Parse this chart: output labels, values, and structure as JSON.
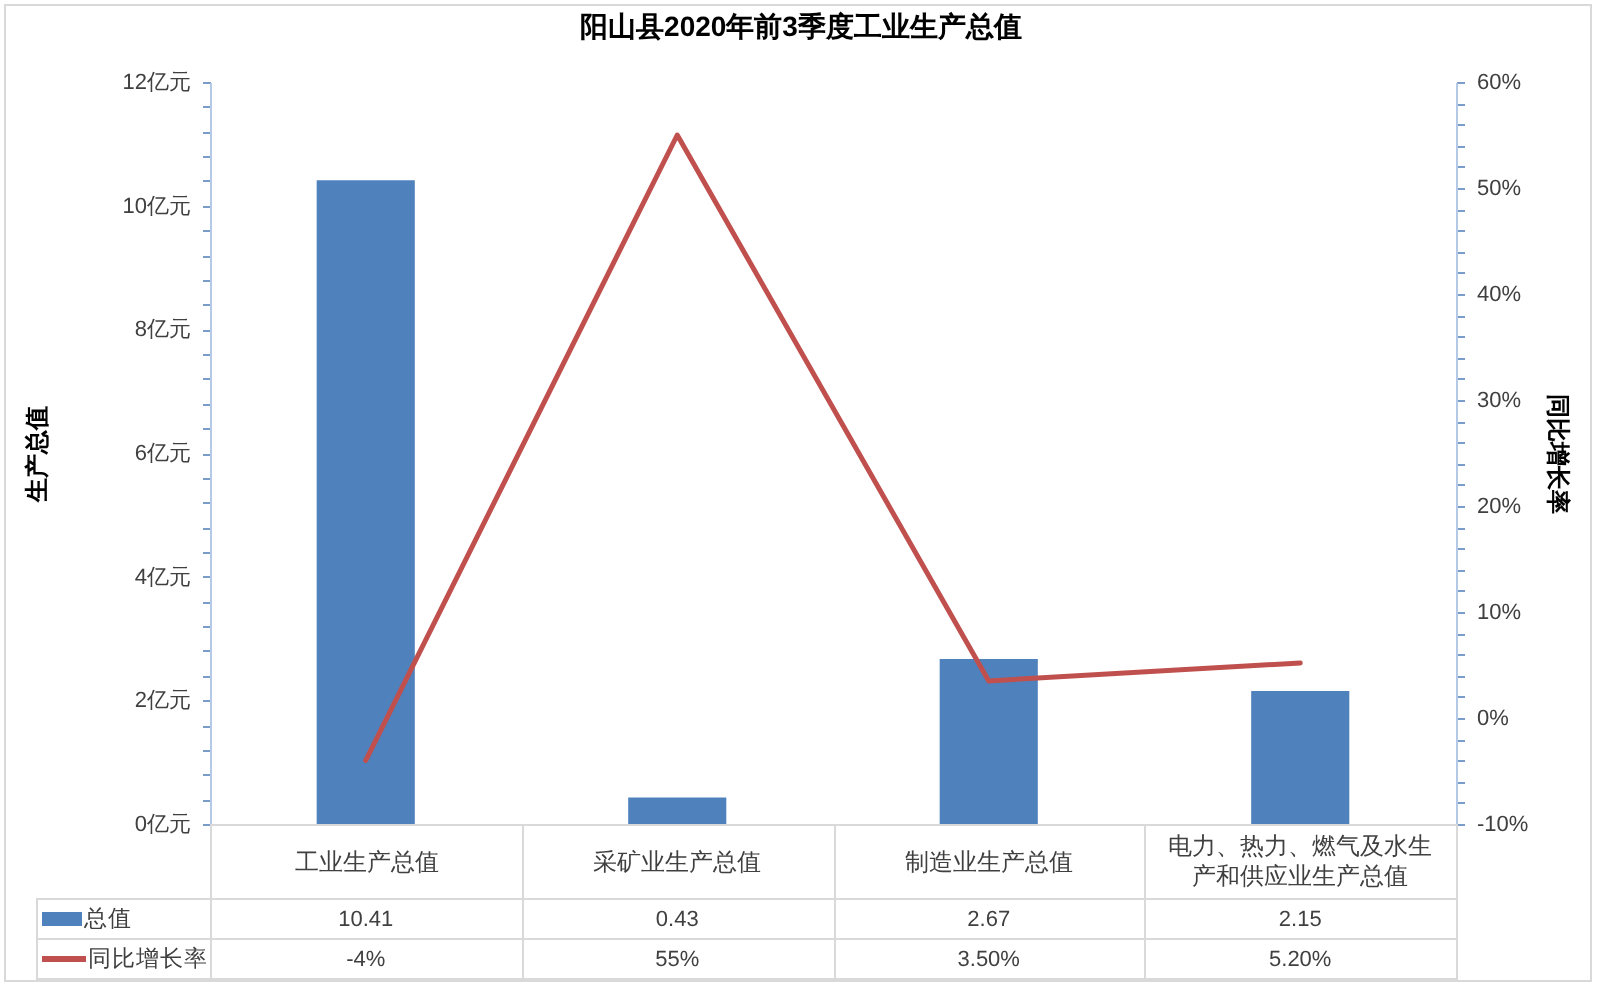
{
  "chart_data": {
    "type": "bar",
    "title": "阳山县2020年前3季度工业生产总值",
    "ylabel": "生产总值",
    "y2label": "同比增长率",
    "categories": [
      "工业生产总值",
      "采矿业生产总值",
      "制造业生产总值",
      "电力、热力、燃气及水生产和供应业生产总值"
    ],
    "series": [
      {
        "name": "总值",
        "color": "#4f81bd",
        "values": [
          10.41,
          0.43,
          2.67,
          2.15
        ],
        "value_labels": [
          "10.41",
          "0.43",
          "2.67",
          "2.15"
        ]
      },
      {
        "name": "同比增长率",
        "type": "line",
        "axis": "y2",
        "color": "#c0504d",
        "values": [
          -4,
          55,
          3.5,
          5.2
        ],
        "value_labels": [
          "-4%",
          "55%",
          "3.50%",
          "5.20%"
        ]
      }
    ],
    "ylim": [
      0,
      12
    ],
    "yticks": [
      {
        "value": 0,
        "label": "0亿元"
      },
      {
        "value": 0.4,
        "label": null
      },
      {
        "value": 0.8,
        "label": null
      },
      {
        "value": 1.2,
        "label": null
      },
      {
        "value": 1.6,
        "label": null
      },
      {
        "value": 2,
        "label": "2亿元"
      },
      {
        "value": 2.4,
        "label": null
      },
      {
        "value": 2.8,
        "label": null
      },
      {
        "value": 3.2,
        "label": null
      },
      {
        "value": 3.6,
        "label": null
      },
      {
        "value": 4,
        "label": "4亿元"
      },
      {
        "value": 4.4,
        "label": null
      },
      {
        "value": 4.8,
        "label": null
      },
      {
        "value": 5.2,
        "label": null
      },
      {
        "value": 5.6,
        "label": null
      },
      {
        "value": 6,
        "label": "6亿元"
      },
      {
        "value": 6.4,
        "label": null
      },
      {
        "value": 6.8,
        "label": null
      },
      {
        "value": 7.2,
        "label": null
      },
      {
        "value": 7.6,
        "label": null
      },
      {
        "value": 8,
        "label": "8亿元"
      },
      {
        "value": 8.4,
        "label": null
      },
      {
        "value": 8.8,
        "label": null
      },
      {
        "value": 9.2,
        "label": null
      },
      {
        "value": 9.6,
        "label": null
      },
      {
        "value": 10,
        "label": "10亿元"
      },
      {
        "value": 10.4,
        "label": null
      },
      {
        "value": 10.8,
        "label": null
      },
      {
        "value": 11.2,
        "label": null
      },
      {
        "value": 11.6,
        "label": null
      },
      {
        "value": 12,
        "label": "12亿元"
      }
    ],
    "y2lim": [
      -10,
      60
    ],
    "y2ticks": [
      {
        "value": -10,
        "label": "-10%"
      },
      {
        "value": -8,
        "label": null
      },
      {
        "value": -6,
        "label": null
      },
      {
        "value": -4,
        "label": null
      },
      {
        "value": -2,
        "label": null
      },
      {
        "value": 0,
        "label": "0%"
      },
      {
        "value": 2,
        "label": null
      },
      {
        "value": 4,
        "label": null
      },
      {
        "value": 6,
        "label": null
      },
      {
        "value": 8,
        "label": null
      },
      {
        "value": 10,
        "label": "10%"
      },
      {
        "value": 12,
        "label": null
      },
      {
        "value": 14,
        "label": null
      },
      {
        "value": 16,
        "label": null
      },
      {
        "value": 18,
        "label": null
      },
      {
        "value": 20,
        "label": "20%"
      },
      {
        "value": 22,
        "label": null
      },
      {
        "value": 24,
        "label": null
      },
      {
        "value": 26,
        "label": null
      },
      {
        "value": 28,
        "label": null
      },
      {
        "value": 30,
        "label": "30%"
      },
      {
        "value": 32,
        "label": null
      },
      {
        "value": 34,
        "label": null
      },
      {
        "value": 36,
        "label": null
      },
      {
        "value": 38,
        "label": null
      },
      {
        "value": 40,
        "label": "40%"
      },
      {
        "value": 42,
        "label": null
      },
      {
        "value": 44,
        "label": null
      },
      {
        "value": 46,
        "label": null
      },
      {
        "value": 48,
        "label": null
      },
      {
        "value": 50,
        "label": "50%"
      },
      {
        "value": 52,
        "label": null
      },
      {
        "value": 54,
        "label": null
      },
      {
        "value": 56,
        "label": null
      },
      {
        "value": 58,
        "label": null
      },
      {
        "value": 60,
        "label": "60%"
      }
    ],
    "legend": "bottom"
  }
}
